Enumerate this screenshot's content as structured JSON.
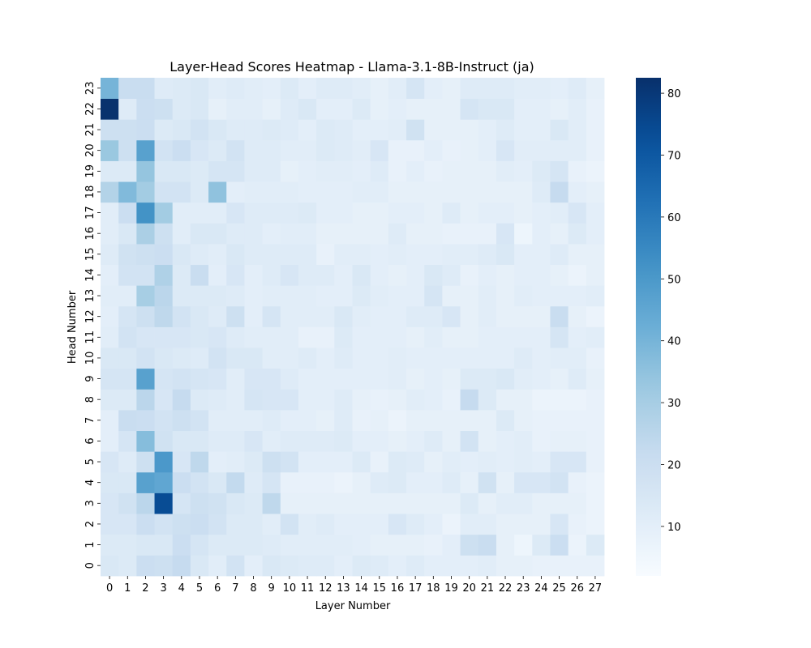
{
  "chart_data": {
    "type": "heatmap",
    "title": "Layer-Head Scores Heatmap - Llama-3.1-8B-Instruct (ja)",
    "xlabel": "Layer Number",
    "ylabel": "Head Number",
    "x_ticks": [
      "0",
      "1",
      "2",
      "3",
      "4",
      "5",
      "6",
      "7",
      "8",
      "9",
      "10",
      "11",
      "12",
      "13",
      "14",
      "15",
      "16",
      "17",
      "18",
      "19",
      "20",
      "21",
      "22",
      "23",
      "24",
      "25",
      "26",
      "27"
    ],
    "y_ticks": [
      "0",
      "1",
      "2",
      "3",
      "4",
      "5",
      "6",
      "7",
      "8",
      "9",
      "10",
      "11",
      "12",
      "13",
      "14",
      "15",
      "16",
      "17",
      "18",
      "19",
      "20",
      "21",
      "22",
      "23"
    ],
    "colorbar": {
      "min": 2,
      "max": 82.5,
      "ticks": [
        10,
        20,
        30,
        40,
        50,
        60,
        70,
        80
      ],
      "colormap": "Blues"
    },
    "values_by_head": [
      [
        14,
        13,
        20,
        19,
        22,
        14,
        11,
        17,
        10,
        14,
        13,
        12,
        12,
        10,
        13,
        12,
        10,
        12,
        10,
        10,
        10,
        11,
        9,
        9,
        8,
        8,
        8,
        8
      ],
      [
        13,
        13,
        14,
        14,
        20,
        16,
        13,
        13,
        13,
        12,
        11,
        11,
        11,
        11,
        10,
        9,
        9,
        9,
        8,
        10,
        19,
        21,
        9,
        6,
        13,
        20,
        7,
        13
      ],
      [
        15,
        15,
        20,
        17,
        19,
        20,
        17,
        13,
        13,
        11,
        17,
        11,
        12,
        10,
        10,
        10,
        15,
        12,
        10,
        7,
        11,
        11,
        9,
        9,
        9,
        15,
        8,
        7
      ],
      [
        15,
        18,
        25,
        74,
        16,
        19,
        18,
        14,
        13,
        24,
        9,
        9,
        9,
        9,
        9,
        9,
        9,
        9,
        9,
        9,
        13,
        9,
        11,
        11,
        9,
        9,
        9,
        7
      ],
      [
        14,
        14,
        47,
        45,
        20,
        17,
        14,
        23,
        12,
        16,
        8,
        8,
        8,
        7,
        9,
        12,
        13,
        10,
        10,
        12,
        9,
        18,
        9,
        15,
        15,
        17,
        8,
        7
      ],
      [
        15,
        12,
        19,
        50,
        15,
        24,
        10,
        11,
        13,
        19,
        17,
        10,
        10,
        10,
        13,
        8,
        13,
        12,
        9,
        11,
        10,
        11,
        10,
        11,
        10,
        15,
        15,
        8
      ],
      [
        10,
        16,
        37,
        18,
        14,
        14,
        12,
        12,
        15,
        11,
        12,
        12,
        12,
        13,
        10,
        10,
        9,
        10,
        12,
        9,
        17,
        9,
        10,
        11,
        8,
        9,
        9,
        8
      ],
      [
        10,
        21,
        20,
        17,
        19,
        17,
        11,
        11,
        11,
        12,
        10,
        10,
        9,
        12,
        8,
        9,
        7,
        9,
        9,
        9,
        9,
        9,
        13,
        9,
        8,
        8,
        8,
        8
      ],
      [
        13,
        13,
        25,
        15,
        22,
        13,
        12,
        11,
        16,
        15,
        15,
        10,
        10,
        12,
        9,
        8,
        9,
        11,
        10,
        8,
        22,
        13,
        9,
        9,
        7,
        7,
        7,
        8
      ],
      [
        16,
        16,
        47,
        16,
        17,
        16,
        15,
        11,
        15,
        15,
        12,
        10,
        10,
        10,
        10,
        10,
        11,
        9,
        10,
        9,
        13,
        13,
        14,
        11,
        10,
        9,
        12,
        9
      ],
      [
        14,
        14,
        17,
        14,
        13,
        12,
        17,
        14,
        14,
        11,
        11,
        12,
        10,
        12,
        10,
        10,
        11,
        10,
        10,
        10,
        10,
        10,
        10,
        12,
        10,
        11,
        11,
        8
      ],
      [
        11,
        17,
        15,
        15,
        15,
        14,
        15,
        12,
        11,
        11,
        11,
        8,
        8,
        13,
        10,
        10,
        10,
        9,
        11,
        9,
        9,
        10,
        10,
        10,
        10,
        16,
        10,
        11
      ],
      [
        10,
        16,
        19,
        24,
        17,
        14,
        12,
        19,
        10,
        16,
        11,
        11,
        11,
        14,
        11,
        10,
        10,
        12,
        12,
        15,
        9,
        11,
        9,
        9,
        9,
        21,
        9,
        7
      ],
      [
        11,
        11,
        30,
        25,
        13,
        13,
        13,
        12,
        10,
        11,
        11,
        11,
        10,
        10,
        13,
        11,
        10,
        10,
        16,
        9,
        9,
        11,
        9,
        11,
        10,
        10,
        10,
        11
      ],
      [
        10,
        17,
        17,
        28,
        13,
        21,
        10,
        15,
        10,
        12,
        15,
        12,
        12,
        10,
        14,
        10,
        9,
        10,
        14,
        12,
        8,
        10,
        9,
        10,
        10,
        9,
        7,
        9
      ],
      [
        12,
        18,
        19,
        20,
        14,
        12,
        11,
        14,
        12,
        12,
        12,
        12,
        8,
        11,
        11,
        10,
        11,
        10,
        10,
        11,
        11,
        12,
        14,
        10,
        10,
        12,
        9,
        9
      ],
      [
        11,
        14,
        29,
        19,
        11,
        14,
        14,
        12,
        12,
        10,
        11,
        11,
        9,
        9,
        9,
        9,
        12,
        9,
        9,
        8,
        8,
        8,
        15,
        6,
        10,
        9,
        13,
        10
      ],
      [
        11,
        20,
        52,
        31,
        11,
        11,
        11,
        15,
        12,
        12,
        12,
        13,
        10,
        10,
        9,
        9,
        10,
        10,
        9,
        12,
        9,
        10,
        10,
        9,
        10,
        11,
        15,
        10
      ],
      [
        27,
        38,
        31,
        17,
        17,
        13,
        35,
        10,
        11,
        11,
        11,
        10,
        10,
        10,
        11,
        11,
        9,
        9,
        9,
        9,
        9,
        9,
        9,
        9,
        12,
        22,
        10,
        9
      ],
      [
        13,
        13,
        34,
        14,
        14,
        13,
        16,
        16,
        12,
        12,
        9,
        10,
        11,
        11,
        10,
        12,
        8,
        10,
        8,
        9,
        9,
        9,
        11,
        10,
        13,
        16,
        8,
        7
      ],
      [
        33,
        19,
        47,
        17,
        20,
        15,
        13,
        17,
        12,
        12,
        11,
        11,
        13,
        12,
        11,
        15,
        8,
        8,
        10,
        8,
        9,
        10,
        15,
        11,
        11,
        11,
        11,
        8
      ],
      [
        19,
        19,
        20,
        13,
        14,
        17,
        14,
        12,
        12,
        13,
        12,
        10,
        13,
        12,
        10,
        10,
        11,
        18,
        9,
        9,
        9,
        10,
        12,
        10,
        10,
        14,
        11,
        8
      ],
      [
        82,
        12,
        20,
        19,
        13,
        14,
        9,
        11,
        11,
        9,
        12,
        14,
        10,
        10,
        13,
        9,
        10,
        9,
        9,
        9,
        16,
        14,
        14,
        10,
        10,
        9,
        11,
        8
      ],
      [
        40,
        21,
        21,
        12,
        13,
        14,
        11,
        12,
        11,
        10,
        13,
        10,
        12,
        12,
        11,
        9,
        11,
        16,
        10,
        9,
        12,
        12,
        12,
        11,
        11,
        10,
        12,
        9
      ]
    ]
  }
}
